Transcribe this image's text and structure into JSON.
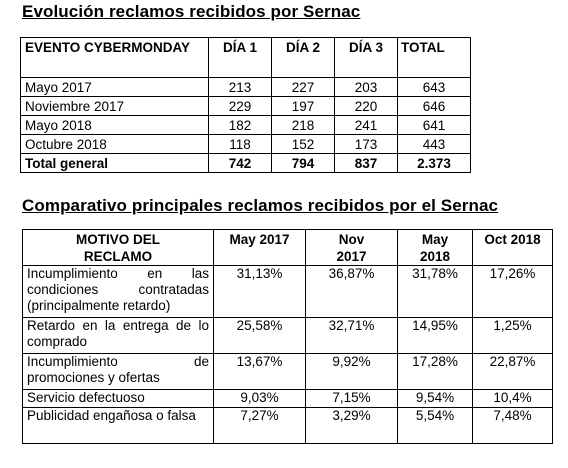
{
  "table1": {
    "title": "Evolución reclamos recibidos por Sernac",
    "headers": [
      "EVENTO CYBERMONDAY",
      "DÍA 1",
      "DÍA 2",
      "DÍA 3",
      "TOTAL"
    ],
    "rows": [
      [
        "Mayo 2017",
        "213",
        "227",
        "203",
        "643"
      ],
      [
        "Noviembre 2017",
        "229",
        "197",
        "220",
        "646"
      ],
      [
        "Mayo 2018",
        "182",
        "218",
        "241",
        "641"
      ],
      [
        "Octubre 2018",
        "118",
        "152",
        "173",
        "443"
      ]
    ],
    "total_row": [
      "Total general",
      "742",
      "794",
      "837",
      "2.373"
    ]
  },
  "table2": {
    "title": "Comparativo principales reclamos recibidos por el Sernac",
    "headers": [
      "MOTIVO DEL RECLAMO",
      "May 2017",
      "Nov 2017",
      "May 2018",
      "Oct 2018"
    ],
    "rows": [
      [
        "Incumplimiento en las condiciones contratadas (principalmente retardo)",
        "31,13%",
        "36,87%",
        "31,78%",
        "17,26%"
      ],
      [
        "Retardo en la entrega de lo comprado",
        "25,58%",
        "32,71%",
        "14,95%",
        "1,25%"
      ],
      [
        "Incumplimiento de promociones y ofertas",
        "13,67%",
        "9,92%",
        "17,28%",
        "22,87%"
      ],
      [
        "Servicio defectuoso",
        "9,03%",
        "7,15%",
        "9,54%",
        "10,4%"
      ],
      [
        "Publicidad engañosa o falsa",
        "7,27%",
        "3,29%",
        "5,54%",
        "7,48%"
      ]
    ]
  }
}
